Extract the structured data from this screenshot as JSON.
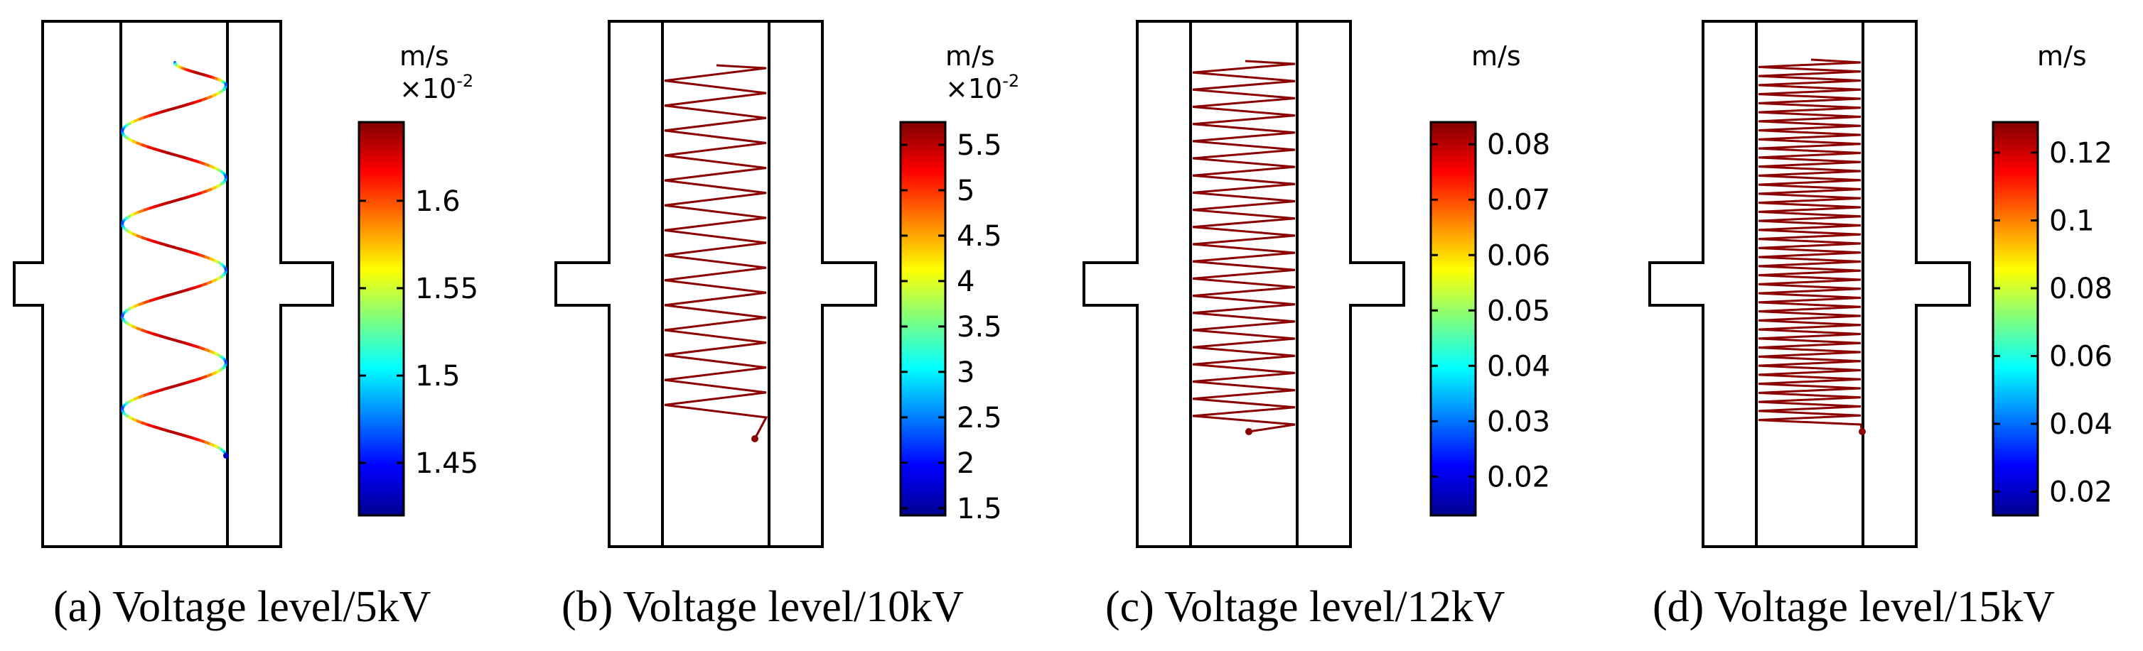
{
  "panels": [
    {
      "id": "a",
      "caption": "(a) Voltage level/5kV",
      "unit": "m/s",
      "multiplier_base": "×10",
      "multiplier_exp": "-2",
      "colorbar_range": [
        1.42,
        1.645
      ],
      "ticks": [
        "1.6",
        "1.55",
        "1.5",
        "1.45"
      ],
      "tick_values": [
        1.6,
        1.55,
        1.5,
        1.45
      ],
      "trajectory_crossings": 8,
      "trajectory_style": "rainbow"
    },
    {
      "id": "b",
      "caption": "(b) Voltage level/10kV",
      "unit": "m/s",
      "multiplier_base": "×10",
      "multiplier_exp": "-2",
      "colorbar_range": [
        1.42,
        5.75
      ],
      "ticks": [
        "5.5",
        "5",
        "4.5",
        "4",
        "3.5",
        "3",
        "2.5",
        "2",
        "1.5"
      ],
      "tick_values": [
        5.5,
        5,
        4.5,
        4,
        3.5,
        3,
        2.5,
        2,
        1.5
      ],
      "trajectory_crossings": 28,
      "trajectory_style": "dark-red"
    },
    {
      "id": "c",
      "caption": "(c) Voltage level/12kV",
      "unit": "m/s",
      "multiplier_base": "",
      "multiplier_exp": "",
      "colorbar_range": [
        0.013,
        0.084
      ],
      "ticks": [
        "0.08",
        "0.07",
        "0.06",
        "0.05",
        "0.04",
        "0.03",
        "0.02"
      ],
      "tick_values": [
        0.08,
        0.07,
        0.06,
        0.05,
        0.04,
        0.03,
        0.02
      ],
      "trajectory_crossings": 42,
      "trajectory_style": "dark-red"
    },
    {
      "id": "d",
      "caption": "(d) Voltage level/15kV",
      "unit": "m/s",
      "multiplier_base": "",
      "multiplier_exp": "",
      "colorbar_range": [
        0.013,
        0.129
      ],
      "ticks": [
        "0.12",
        "0.1",
        "0.08",
        "0.06",
        "0.04",
        "0.02"
      ],
      "tick_values": [
        0.12,
        0.1,
        0.08,
        0.06,
        0.04,
        0.02
      ],
      "trajectory_crossings": 80,
      "trajectory_style": "dark-red"
    }
  ],
  "colors": {
    "outline": "#000000",
    "trajectory_dark": "#8b0000"
  }
}
